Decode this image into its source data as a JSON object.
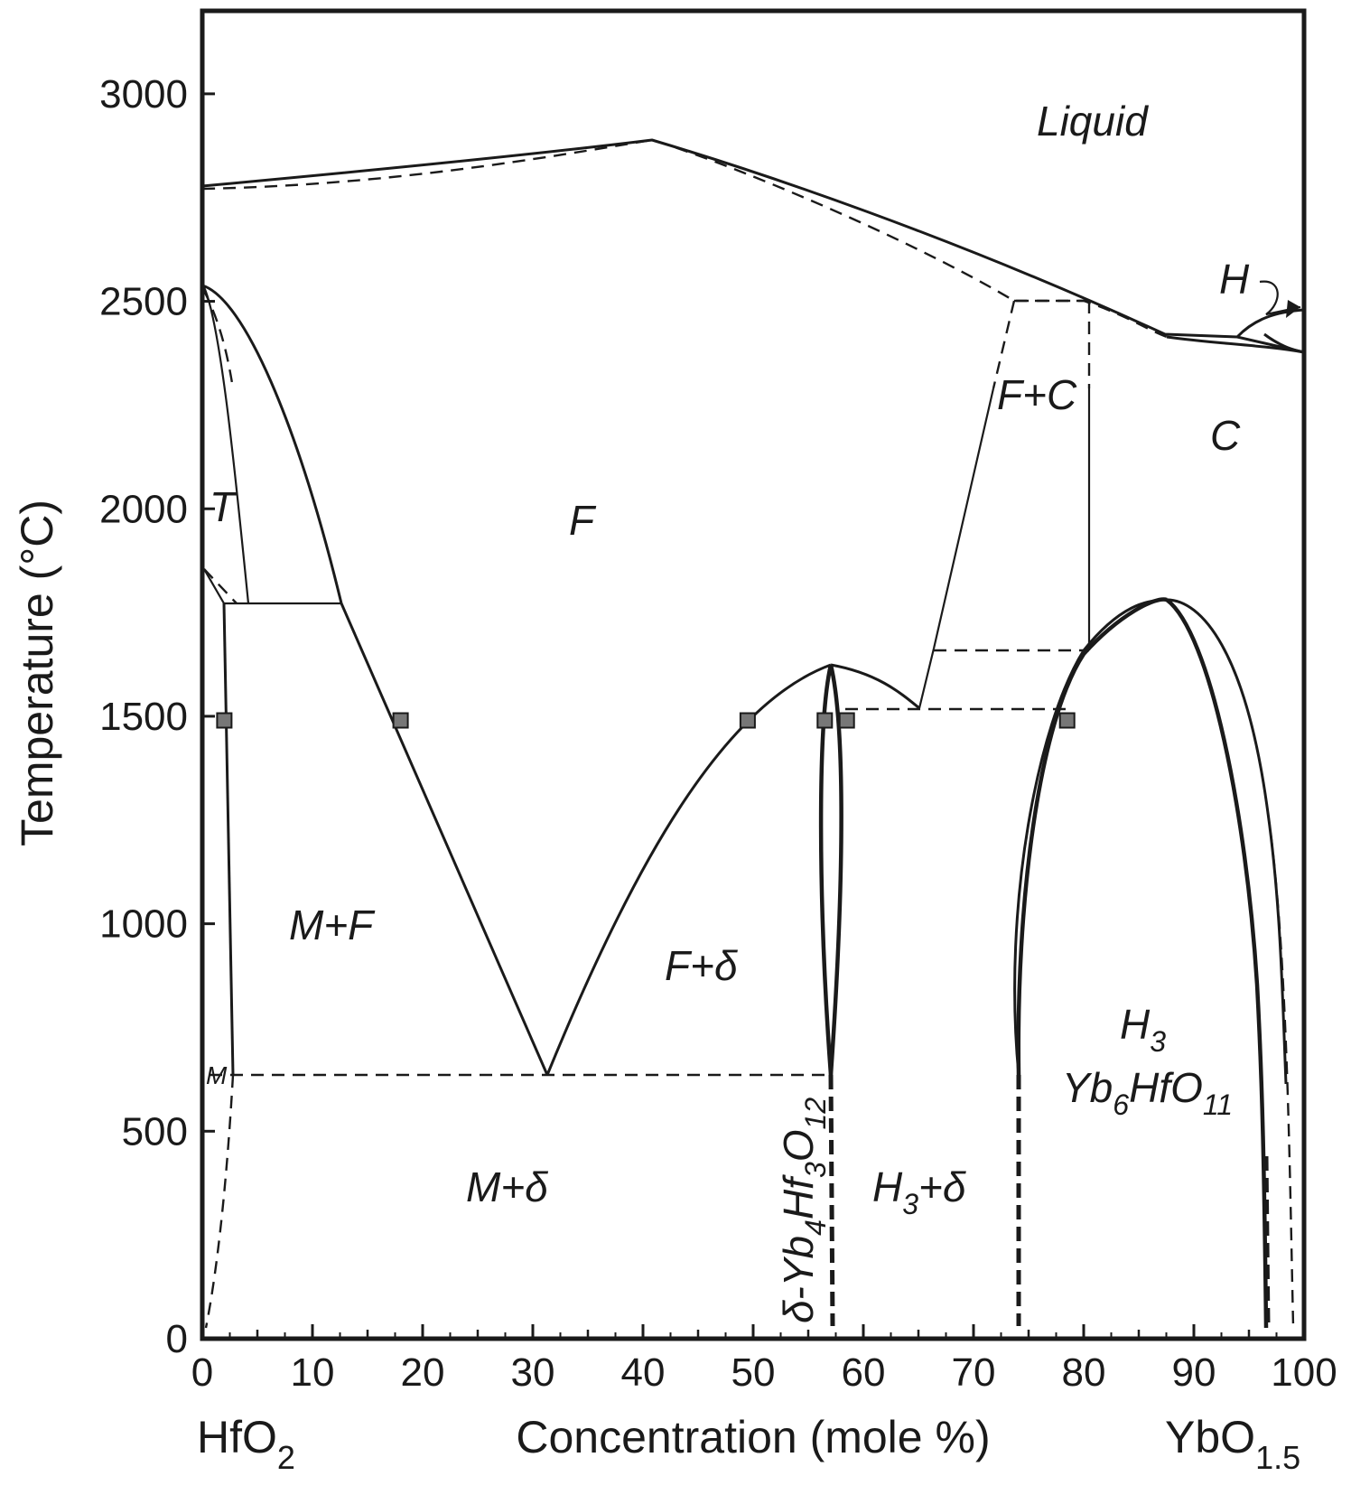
{
  "chart_data": {
    "type": "phase-diagram",
    "xlabel": "Concentration (mole %)",
    "ylabel": "Temperature (°C)",
    "xlim": [
      0,
      100
    ],
    "ylim": [
      0,
      3200
    ],
    "x_ticks": [
      "0",
      "10",
      "20",
      "30",
      "40",
      "50",
      "60",
      "70",
      "80",
      "90",
      "100"
    ],
    "y_ticks": [
      "0",
      "500",
      "1000",
      "1500",
      "2000",
      "2500",
      "3000"
    ],
    "endmember_left": {
      "base": "HfO",
      "sub": "2"
    },
    "endmember_right": {
      "base": "YbO",
      "sub": "1.5"
    },
    "regions": {
      "liquid": "Liquid",
      "F": "F",
      "T": "T",
      "C": "C",
      "H": "H",
      "F_plus_C": "F+C",
      "M_plus_F": "M+F",
      "F_plus_delta": "F+δ",
      "M_plus_delta": "M+δ",
      "M": "M",
      "H3_plus_delta": {
        "a": "H",
        "a_sub": "3",
        "b": "+δ"
      },
      "H3": {
        "a": "H",
        "a_sub": "3"
      },
      "yb6hfo11": {
        "a": "Yb",
        "a_sub": "6",
        "b": "HfO",
        "b_sub": "11"
      },
      "delta_phase": {
        "a": "δ-Yb",
        "a_sub": "4",
        "b": "Hf",
        "b_sub": "3",
        "c": "O",
        "c_sub": "12"
      }
    },
    "experimental_points_1500C": [
      {
        "x": 2.0,
        "y": 1490
      },
      {
        "x": 18.0,
        "y": 1490
      },
      {
        "x": 49.5,
        "y": 1490
      },
      {
        "x": 56.5,
        "y": 1490
      },
      {
        "x": 58.5,
        "y": 1490
      },
      {
        "x": 78.5,
        "y": 1490
      }
    ],
    "boundaries": {
      "liquidus": [
        [
          0,
          2750
        ],
        [
          41.5,
          2875
        ],
        [
          70,
          2620
        ],
        [
          88,
          2440
        ],
        [
          94,
          2400
        ],
        [
          100,
          2370
        ]
      ],
      "solidus_F": [
        [
          0,
          2750
        ],
        [
          41.5,
          2875
        ],
        [
          74,
          2490
        ]
      ],
      "F_eutectoid_M_F_T": [
        [
          0,
          1750
        ],
        [
          12.5,
          1750
        ]
      ],
      "F_C_peritectic": [
        [
          74,
          2490
        ],
        [
          80.5,
          2490
        ]
      ],
      "F_C_lower": [
        [
          66.5,
          1640
        ],
        [
          80.5,
          1640
        ]
      ],
      "F_delta_H3_eutectoid": [
        [
          65,
          1520
        ],
        [
          78.5,
          1520
        ]
      ],
      "M_F_delta_eutectoid": [
        [
          1,
          630
        ],
        [
          56.5,
          630
        ]
      ],
      "delta_max": [
        [
          57,
          1600
        ]
      ],
      "H3_max": [
        [
          87,
          1770
        ]
      ]
    }
  }
}
